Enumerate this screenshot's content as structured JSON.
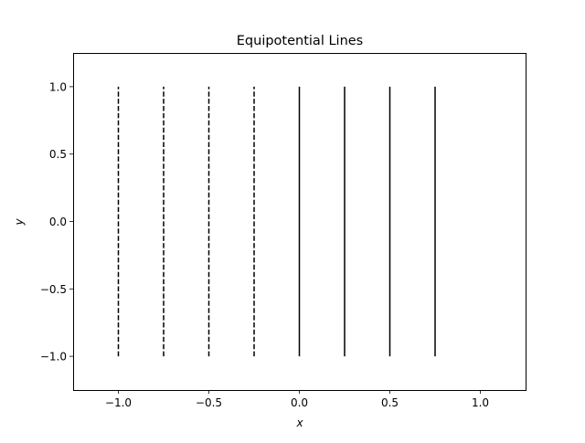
{
  "chart_data": {
    "type": "line",
    "title": "Equipotential Lines",
    "xlabel": "x",
    "ylabel": "y",
    "xlim": [
      -1.25,
      1.25
    ],
    "ylim": [
      -1.25,
      1.25
    ],
    "x_ticks": [
      -1.0,
      -0.5,
      0.0,
      0.5,
      1.0
    ],
    "x_tick_labels": [
      "−1.0",
      "−0.5",
      "0.0",
      "0.5",
      "1.0"
    ],
    "y_ticks": [
      -1.0,
      -0.5,
      0.0,
      0.5,
      1.0
    ],
    "y_tick_labels": [
      "−1.0",
      "−0.5",
      "0.0",
      "0.5",
      "1.0"
    ],
    "grid": false,
    "legend": "none",
    "line_color": "#000000",
    "series": [
      {
        "x": [
          -1.0,
          -1.0
        ],
        "y": [
          -1.0,
          1.0
        ],
        "style": "dashed"
      },
      {
        "x": [
          -0.75,
          -0.75
        ],
        "y": [
          -1.0,
          1.0
        ],
        "style": "dashed"
      },
      {
        "x": [
          -0.5,
          -0.5
        ],
        "y": [
          -1.0,
          1.0
        ],
        "style": "dashed"
      },
      {
        "x": [
          -0.25,
          -0.25
        ],
        "y": [
          -1.0,
          1.0
        ],
        "style": "dashed"
      },
      {
        "x": [
          0.0,
          0.0
        ],
        "y": [
          -1.0,
          1.0
        ],
        "style": "solid"
      },
      {
        "x": [
          0.25,
          0.25
        ],
        "y": [
          -1.0,
          1.0
        ],
        "style": "solid"
      },
      {
        "x": [
          0.5,
          0.5
        ],
        "y": [
          -1.0,
          1.0
        ],
        "style": "solid"
      },
      {
        "x": [
          0.75,
          0.75
        ],
        "y": [
          -1.0,
          1.0
        ],
        "style": "solid"
      }
    ]
  }
}
